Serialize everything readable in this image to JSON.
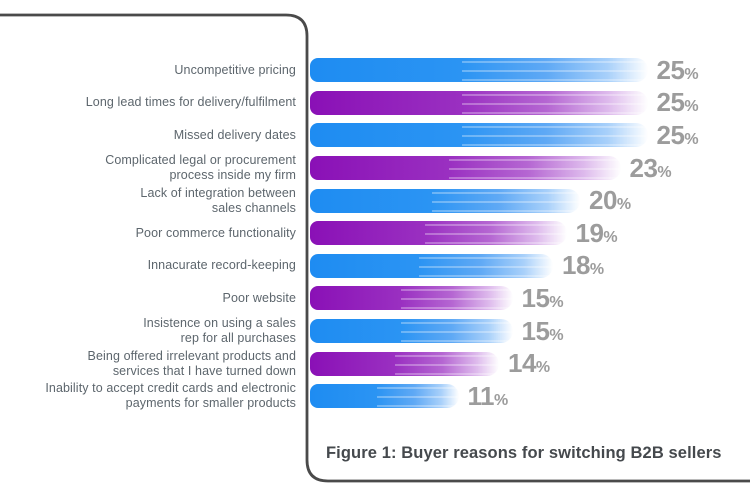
{
  "chart_data": {
    "type": "bar",
    "orientation": "horizontal",
    "caption": "Figure 1: Buyer reasons for switching B2B sellers",
    "unit": "%",
    "xlim": [
      0,
      25
    ],
    "grid": false,
    "legend": false,
    "value_labels_shown": true,
    "palette": {
      "bar_blue": "#1e8cf2",
      "bar_purple": "#8a10b6",
      "value_label": "#9c9c9c",
      "category_label": "#5d666d",
      "caption_text": "#45494d",
      "divider_line": "#4a4a4a"
    },
    "categories": [
      "Uncompetitive pricing",
      "Long lead times for delivery/fulfilment",
      "Missed delivery dates",
      "Complicated legal or procurement process inside my firm",
      "Lack of integration between sales channels",
      "Poor commerce functionality",
      "Innacurate record-keeping",
      "Poor website",
      "Insistence on using a sales rep for all purchases",
      "Being offered irrelevant products and services that I have turned down",
      "Inability to accept credit cards and electronic payments for smaller products"
    ],
    "values": [
      25,
      25,
      25,
      23,
      20,
      19,
      18,
      15,
      15,
      14,
      11
    ],
    "rows": [
      {
        "label_lines": [
          "Uncompetitive pricing"
        ],
        "value": 25,
        "color": "blue"
      },
      {
        "label_lines": [
          "Long lead times for delivery/fulfilment"
        ],
        "value": 25,
        "color": "purple"
      },
      {
        "label_lines": [
          "Missed delivery dates"
        ],
        "value": 25,
        "color": "blue"
      },
      {
        "label_lines": [
          "Complicated legal or procurement",
          "process inside my firm"
        ],
        "value": 23,
        "color": "purple"
      },
      {
        "label_lines": [
          "Lack of integration between",
          "sales channels"
        ],
        "value": 20,
        "color": "blue"
      },
      {
        "label_lines": [
          "Poor commerce functionality"
        ],
        "value": 19,
        "color": "purple"
      },
      {
        "label_lines": [
          "Innacurate record-keeping"
        ],
        "value": 18,
        "color": "blue"
      },
      {
        "label_lines": [
          "Poor website"
        ],
        "value": 15,
        "color": "purple"
      },
      {
        "label_lines": [
          "Insistence on using a sales",
          "rep for all purchases"
        ],
        "value": 15,
        "color": "blue"
      },
      {
        "label_lines": [
          "Being offered irrelevant products and",
          "services that I have turned down"
        ],
        "value": 14,
        "color": "purple"
      },
      {
        "label_lines": [
          "Inability to accept credit cards and electronic",
          "payments for smaller products"
        ],
        "value": 11,
        "color": "blue"
      }
    ]
  }
}
